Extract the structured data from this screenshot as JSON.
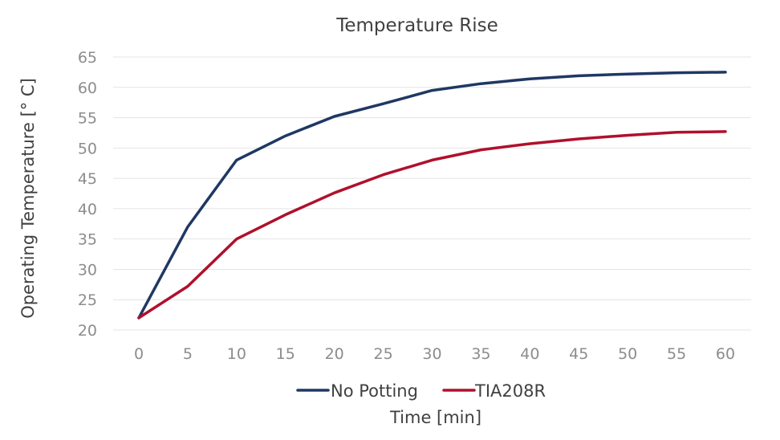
{
  "chart_data": {
    "type": "line",
    "title": "Temperature Rise",
    "xlabel": "Time [min]",
    "ylabel": "Operating Temperature [° C]",
    "x": [
      0,
      5,
      10,
      15,
      20,
      25,
      30,
      35,
      40,
      45,
      50,
      55,
      60
    ],
    "x_tick_labels": [
      "0",
      "5",
      "10",
      "15",
      "20",
      "25",
      "30",
      "35",
      "40",
      "45",
      "50",
      "55",
      "60"
    ],
    "y_ticks": [
      20,
      25,
      30,
      35,
      40,
      45,
      50,
      55,
      60,
      65
    ],
    "y_tick_labels": [
      "20",
      "25",
      "30",
      "35",
      "40",
      "45",
      "50",
      "55",
      "60",
      "65"
    ],
    "ylim": [
      20,
      65
    ],
    "grid": true,
    "legend_position": "bottom",
    "series": [
      {
        "name": "No Potting",
        "color": "#1f3864",
        "values": [
          22,
          37,
          48,
          52,
          55.2,
          57.3,
          59.5,
          60.6,
          61.4,
          61.9,
          62.2,
          62.4,
          62.5
        ]
      },
      {
        "name": "TIA208R",
        "color": "#b0102c",
        "values": [
          22,
          27.2,
          35,
          39,
          42.6,
          45.6,
          48,
          49.7,
          50.7,
          51.5,
          52.1,
          52.6,
          52.7
        ]
      }
    ]
  }
}
